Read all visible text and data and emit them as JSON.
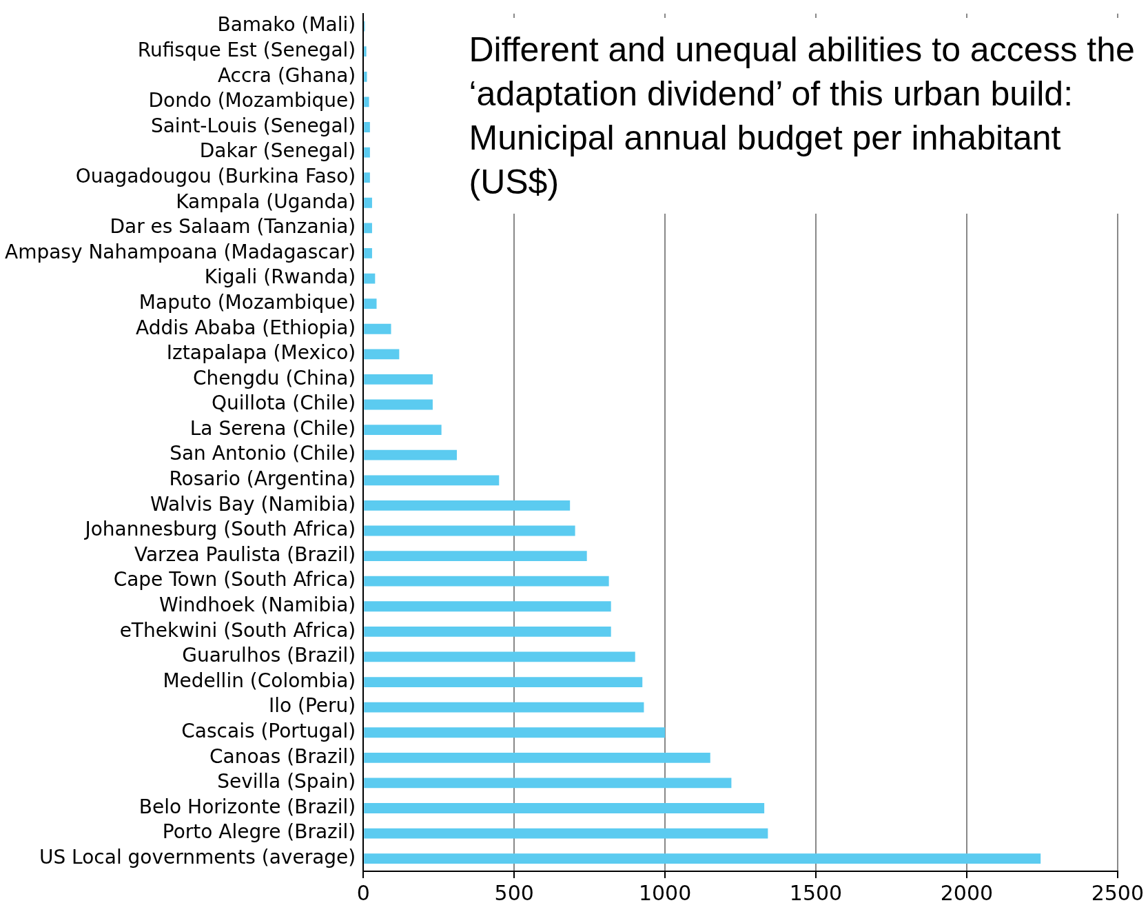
{
  "chart_data": {
    "type": "bar",
    "orientation": "horizontal",
    "title": "Different and unequal abilities to access the ‘adaptation dividend’ of this urban build: Municipal annual budget per inhabitant (US$)",
    "categories": [
      "Bamako (Mali)",
      "Rufisque Est (Senegal)",
      "Accra (Ghana)",
      "Dondo (Mozambique)",
      "Saint-Louis (Senegal)",
      "Dakar (Senegal)",
      "Ouagadougou (Burkina Faso)",
      "Kampala (Uganda)",
      "Dar es Salaam (Tanzania)",
      "Ampasy Nahampoana (Madagascar)",
      "Kigali (Rwanda)",
      "Maputo (Mozambique)",
      "Addis Ababa (Ethiopia)",
      "Iztapalapa (Mexico)",
      "Chengdu (China)",
      "Quillota (Chile)",
      "La Serena (Chile)",
      "San Antonio (Chile)",
      "Rosario (Argentina)",
      "Walvis Bay (Namibia)",
      "Johannesburg (South Africa)",
      "Varzea Paulista (Brazil)",
      "Cape Town (South Africa)",
      "Windhoek (Namibia)",
      "eThekwini (South Africa)",
      "Guarulhos (Brazil)",
      "Medellin (Colombia)",
      "Ilo (Peru)",
      "Cascais (Portugal)",
      "Canoas (Brazil)",
      "Sevilla (Spain)",
      "Belo Horizonte (Brazil)",
      "Porto Alegre (Brazil)",
      "US Local governments (average)"
    ],
    "values": [
      5,
      10,
      12,
      19,
      22,
      22,
      22,
      29,
      29,
      29,
      39,
      44,
      92,
      119,
      230,
      230,
      259,
      310,
      450,
      685,
      702,
      741,
      814,
      821,
      821,
      901,
      925,
      930,
      1000,
      1150,
      1220,
      1329,
      1341,
      2245
    ],
    "color": "#5bcbf0",
    "xlim": [
      0,
      2500
    ],
    "xticks": [
      0,
      500,
      1000,
      1500,
      2000,
      2500
    ],
    "grid": "x",
    "legend": false
  }
}
